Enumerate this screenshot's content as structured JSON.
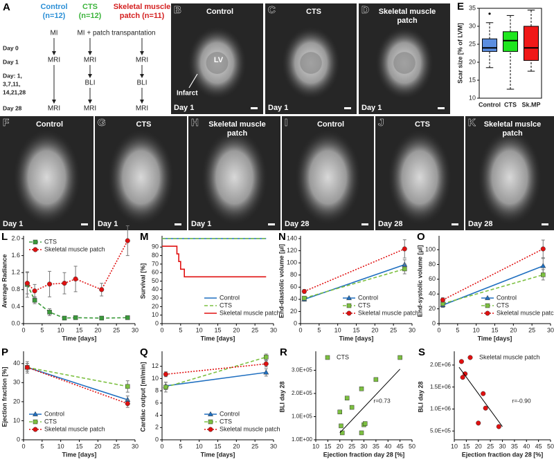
{
  "diagram": {
    "panel": "A",
    "groups": [
      {
        "lines": [
          "Control",
          "(n=12)"
        ],
        "color": "#2b8fd6"
      },
      {
        "lines": [
          "CTS",
          "(n=12)"
        ],
        "color": "#3cb43c"
      },
      {
        "lines": [
          "Skeletal muscle",
          "patch (n=11)"
        ],
        "color": "#d42020"
      }
    ],
    "top_steps": [
      "MI",
      "MI + patch transpantation"
    ],
    "rows": [
      [
        "Day 0"
      ],
      [
        "Day 1"
      ],
      [
        "Day: 1,",
        "3,7,11,",
        "14,21,28"
      ],
      [
        "Day 28"
      ]
    ],
    "columns": [
      [
        "MRI",
        "MRI"
      ],
      [
        "MRI",
        "BLI",
        "MRI"
      ],
      [
        "MRI",
        "BLI",
        "MRI"
      ]
    ]
  },
  "images": [
    {
      "panel": "B",
      "title": [
        "Control"
      ],
      "day": "Day 1",
      "annotations": [
        "LV",
        "Infarct"
      ]
    },
    {
      "panel": "C",
      "title": [
        "CTS"
      ],
      "day": "Day 1"
    },
    {
      "panel": "D",
      "title": [
        "Skeletal muscle",
        "patch"
      ],
      "day": "Day 1"
    },
    {
      "panel": "F",
      "title": [
        "Control"
      ],
      "day": "Day 1"
    },
    {
      "panel": "G",
      "title": [
        "CTS"
      ],
      "day": "Day 1"
    },
    {
      "panel": "H",
      "title": [
        "Skeletal muscle",
        "patch"
      ],
      "day": "Day 1"
    },
    {
      "panel": "I",
      "title": [
        "Control"
      ],
      "day": "Day 28"
    },
    {
      "panel": "J",
      "title": [
        "CTS"
      ],
      "day": "Day 28"
    },
    {
      "panel": "K",
      "title": [
        "Skeletal muslce",
        "patch"
      ],
      "day": "Day 28"
    }
  ],
  "chart_data": [
    {
      "type": "box",
      "panel": "E",
      "ylabel": "Scar size [% of LVM]",
      "categories": [
        "Control",
        "CTS",
        "Sk.MP"
      ],
      "colors": [
        "#5b8ee0",
        "#1ee61e",
        "#f01818"
      ],
      "boxes": [
        {
          "min": 18.5,
          "q1": 23,
          "median": 24,
          "q3": 26.5,
          "max": 31,
          "outliers": [
            33.5
          ]
        },
        {
          "min": 12.5,
          "q1": 23,
          "median": 26,
          "q3": 28.5,
          "max": 33
        },
        {
          "min": 17.5,
          "q1": 20.5,
          "median": 24,
          "q3": 30,
          "max": 34.5
        }
      ],
      "ylim": [
        10,
        35
      ],
      "yticks": [
        10,
        15,
        20,
        25,
        30,
        35
      ]
    },
    {
      "type": "line",
      "panel": "L",
      "xlabel": "Time [days]",
      "ylabel": "Average Radiance",
      "xlim": [
        0,
        30
      ],
      "xticks": [
        0,
        5,
        10,
        15,
        20,
        25,
        30
      ],
      "ylim": [
        0,
        2.0
      ],
      "yticks": [
        {
          "value": 0,
          "label": "0.0"
        },
        0.4,
        0.8,
        1.2,
        1.6,
        {
          "value": 2,
          "label": "2.0"
        }
      ],
      "legend": "upper left",
      "series": [
        {
          "name": "CTS",
          "color": "#3a9a3a",
          "dash": "dashed",
          "marker": "square",
          "x": [
            1,
            3,
            7,
            11,
            14,
            21,
            28
          ],
          "values": [
            0.92,
            0.55,
            0.27,
            0.13,
            0.14,
            0.13,
            0.14
          ],
          "errors": [
            0.3,
            0.08,
            0.08,
            0.03,
            0.03,
            0.02,
            0.03
          ]
        },
        {
          "name": "Skeletal muscle patch",
          "color": "#e01010",
          "dash": "dotted",
          "marker": "circle",
          "x": [
            1,
            3,
            7,
            11,
            14,
            21,
            28
          ],
          "values": [
            0.95,
            0.77,
            0.93,
            0.95,
            1.05,
            0.8,
            1.95
          ],
          "errors": [
            0.25,
            0.15,
            0.3,
            0.25,
            0.3,
            0.15,
            0.35
          ]
        }
      ]
    },
    {
      "type": "line",
      "panel": "M",
      "xlabel": "Time [days]",
      "ylabel": "Survival [%]",
      "xlim": [
        0,
        30
      ],
      "xticks": [
        0,
        5,
        10,
        15,
        20,
        25,
        30
      ],
      "ylim": [
        0,
        100
      ],
      "yticks": [
        0,
        10,
        20,
        30,
        40,
        50,
        60,
        70,
        80,
        90
      ],
      "legend": "lower right",
      "series": [
        {
          "name": "Control",
          "color": "#1f6fc0",
          "dash": "solid",
          "x": [
            0,
            28
          ],
          "values": [
            100,
            100
          ]
        },
        {
          "name": "CTS",
          "color": "#7cc040",
          "dash": "dashed",
          "x": [
            0,
            28
          ],
          "values": [
            100,
            100
          ]
        },
        {
          "name": "Skeletal muscle patch",
          "color": "#e01010",
          "dash": "solid",
          "x": [
            0,
            2,
            2,
            4,
            4,
            4.5,
            4.5,
            5,
            5,
            6,
            6,
            28
          ],
          "values": [
            91,
            91,
            91,
            91,
            82,
            82,
            73,
            73,
            64,
            64,
            55,
            55
          ]
        }
      ]
    },
    {
      "type": "line",
      "panel": "N",
      "xlabel": "Time [days]",
      "ylabel": "End-diastolic volume [μl]",
      "xlim": [
        0,
        30
      ],
      "xticks": [
        0,
        5,
        10,
        15,
        20,
        25,
        30
      ],
      "ylim": [
        0,
        140
      ],
      "yticks": [
        0,
        20,
        40,
        60,
        80,
        100,
        120,
        140
      ],
      "legend": "lower right",
      "series": [
        {
          "name": "Control",
          "color": "#1f6fc0",
          "dash": "solid",
          "marker": "triangle",
          "x": [
            1,
            28
          ],
          "values": [
            40,
            97
          ],
          "errors": [
            3,
            8
          ]
        },
        {
          "name": "CTS",
          "color": "#7cc040",
          "dash": "dashed",
          "marker": "square",
          "x": [
            1,
            28
          ],
          "values": [
            42,
            90
          ],
          "errors": [
            3,
            8
          ]
        },
        {
          "name": "Skeletal muscle patch",
          "color": "#e01010",
          "dash": "dotted",
          "marker": "circle",
          "x": [
            1,
            28
          ],
          "values": [
            53,
            123
          ],
          "errors": [
            3,
            15
          ]
        }
      ]
    },
    {
      "type": "line",
      "panel": "O",
      "xlabel": "Time [days]",
      "ylabel": "End-systolic volume [μl]",
      "xlim": [
        0,
        30
      ],
      "xticks": [
        0,
        5,
        10,
        15,
        20,
        25,
        30
      ],
      "ylim": [
        0,
        115
      ],
      "yticks": [
        0,
        20,
        40,
        60,
        80,
        100
      ],
      "legend": "lower right",
      "series": [
        {
          "name": "Control",
          "color": "#1f6fc0",
          "dash": "solid",
          "marker": "triangle",
          "x": [
            1,
            28
          ],
          "values": [
            25,
            78
          ],
          "errors": [
            3,
            10
          ]
        },
        {
          "name": "CTS",
          "color": "#7cc040",
          "dash": "dashed",
          "marker": "square",
          "x": [
            1,
            28
          ],
          "values": [
            27,
            66
          ],
          "errors": [
            3,
            7
          ]
        },
        {
          "name": "Skeletal muscle patch",
          "color": "#e01010",
          "dash": "dotted",
          "marker": "circle",
          "x": [
            1,
            28
          ],
          "values": [
            32,
            101
          ],
          "errors": [
            3,
            12
          ]
        }
      ]
    },
    {
      "type": "line",
      "panel": "P",
      "xlabel": "Time [days]",
      "ylabel": "Ejection fraction [%]",
      "xlim": [
        0,
        30
      ],
      "xticks": [
        0,
        5,
        10,
        15,
        20,
        25,
        30
      ],
      "ylim": [
        0,
        45
      ],
      "yticks": [
        0,
        10,
        20,
        30,
        40
      ],
      "legend": "lower left",
      "series": [
        {
          "name": "Control",
          "color": "#1f6fc0",
          "dash": "solid",
          "marker": "triangle",
          "x": [
            1,
            28
          ],
          "values": [
            38,
            21
          ],
          "errors": [
            2,
            2
          ]
        },
        {
          "name": "CTS",
          "color": "#7cc040",
          "dash": "dashed",
          "marker": "square",
          "x": [
            1,
            28
          ],
          "values": [
            38,
            28
          ],
          "errors": [
            2,
            3
          ]
        },
        {
          "name": "Skeletal muscle patch",
          "color": "#e01010",
          "dash": "dotted",
          "marker": "circle",
          "x": [
            1,
            28
          ],
          "values": [
            38,
            19
          ],
          "errors": [
            3,
            2
          ]
        }
      ]
    },
    {
      "type": "line",
      "panel": "Q",
      "xlabel": "Time [days]",
      "ylabel": "Cardiac output [ml/min]",
      "xlim": [
        0,
        30
      ],
      "xticks": [
        0,
        5,
        10,
        15,
        20,
        25,
        30
      ],
      "ylim": [
        0,
        14
      ],
      "yticks": [
        0,
        2,
        4,
        6,
        8,
        10,
        12
      ],
      "legend": "lower right",
      "series": [
        {
          "name": "Control",
          "color": "#1f6fc0",
          "dash": "solid",
          "marker": "triangle",
          "x": [
            1,
            28
          ],
          "values": [
            8.8,
            11.0
          ],
          "errors": [
            0.6,
            0.6
          ]
        },
        {
          "name": "CTS",
          "color": "#7cc040",
          "dash": "dashed",
          "marker": "square",
          "x": [
            1,
            28
          ],
          "values": [
            8.6,
            13.5
          ],
          "errors": [
            0.8,
            0.5
          ]
        },
        {
          "name": "Skeletal muscle patch",
          "color": "#e01010",
          "dash": "dotted",
          "marker": "circle",
          "x": [
            1,
            28
          ],
          "values": [
            10.7,
            12.4
          ],
          "errors": [
            0.4,
            0.5
          ]
        }
      ]
    },
    {
      "type": "scatter",
      "panel": "R",
      "xlabel": "Ejection fraction day 28 [%]",
      "ylabel": "BLI day 28",
      "xlim": [
        10,
        50
      ],
      "xticks": [
        10,
        15,
        20,
        25,
        30,
        35,
        40,
        45,
        50
      ],
      "ylim": [
        0,
        370000
      ],
      "yticks": [
        {
          "value": 1,
          "label": "1.0E+00"
        },
        {
          "value": 100000,
          "label": "1.0E+05"
        },
        {
          "value": 200000,
          "label": "2.0E+05"
        },
        {
          "value": 300000,
          "label": "3.0E+05"
        }
      ],
      "legend": "upper left",
      "annotation": "r=0.73",
      "series": [
        {
          "name": "CTS",
          "color": "#7cc040",
          "marker": "square",
          "x": [
            20,
            21,
            20.5,
            23,
            25,
            29,
            29,
            30,
            30.5,
            35,
            45
          ],
          "values": [
            120000,
            30000,
            60000,
            180000,
            140000,
            220000,
            30000,
            65000,
            70000,
            260000,
            355000
          ]
        }
      ],
      "trendline": {
        "x": [
          20,
          45
        ],
        "y": [
          30000,
          305000
        ]
      }
    },
    {
      "type": "scatter",
      "panel": "S",
      "xlabel": "Ejection fraction day 28 [%]",
      "ylabel": "BLI day 28",
      "xlim": [
        10,
        50
      ],
      "xticks": [
        10,
        15,
        20,
        25,
        30,
        35,
        40,
        45,
        50
      ],
      "ylim": [
        300000,
        2250000
      ],
      "yticks": [
        {
          "value": 500000,
          "label": "5.0E+05"
        },
        {
          "value": 1000000,
          "label": "1.0E+06"
        },
        {
          "value": 1500000,
          "label": "1.5E+06"
        },
        {
          "value": 2000000,
          "label": "2.0E+06"
        }
      ],
      "legend": "upper right",
      "annotation": "r=-0.90",
      "series": [
        {
          "name": "Skeletal muscle patch",
          "color": "#e01010",
          "marker": "circle",
          "x": [
            13,
            13.5,
            14.5,
            20,
            22,
            23,
            28.5
          ],
          "values": [
            2080000,
            1720000,
            1800000,
            680000,
            1350000,
            1020000,
            600000
          ]
        }
      ],
      "trendline": {
        "x": [
          12,
          30
        ],
        "y": [
          1950000,
          600000
        ]
      }
    }
  ]
}
